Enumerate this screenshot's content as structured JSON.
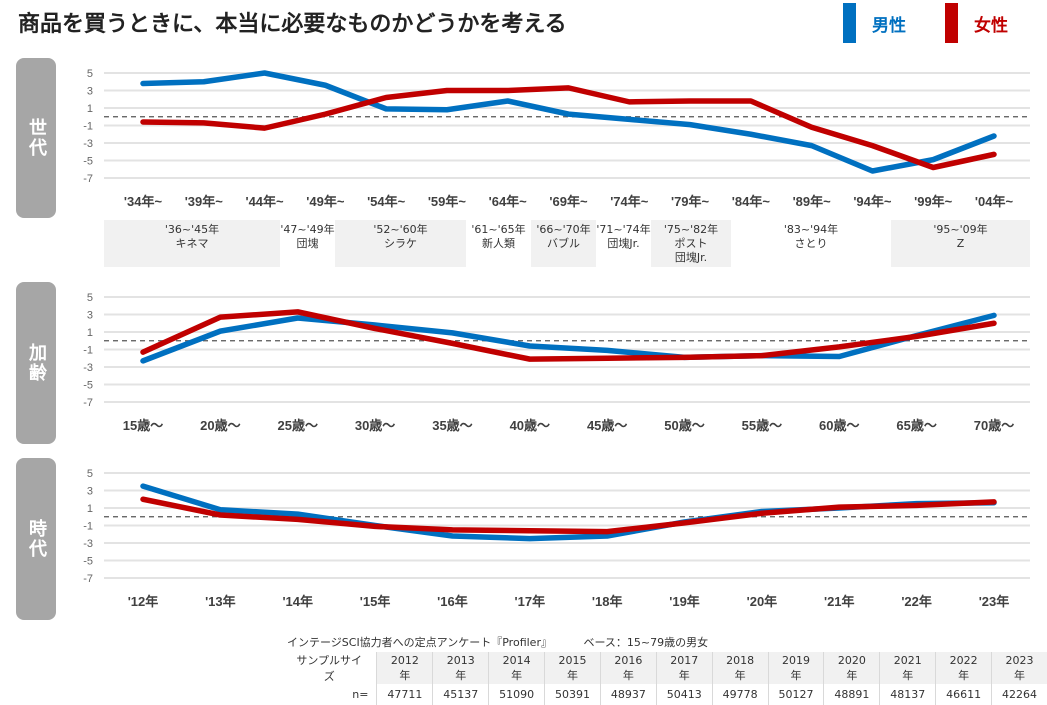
{
  "title": "商品を買うときに、本当に必要なものかどうかを考える",
  "legend": [
    {
      "label": "男性",
      "color": "#0070c0"
    },
    {
      "label": "女性",
      "color": "#c00000"
    }
  ],
  "chart_data": [
    {
      "type": "line",
      "panel_label": "世代",
      "xlabel": "",
      "ylabel": "",
      "yticks": [
        5,
        3,
        1,
        -1,
        -3,
        -5,
        -7
      ],
      "ylim": [
        -7,
        5
      ],
      "reference_line": 0,
      "grid": true,
      "categories": [
        "'34年~",
        "'39年~",
        "'44年~",
        "'49年~",
        "'54年~",
        "'59年~",
        "'64年~",
        "'69年~",
        "'74年~",
        "'79年~",
        "'84年~",
        "'89年~",
        "'94年~",
        "'99年~",
        "'04年~"
      ],
      "series": [
        {
          "name": "男性",
          "values": [
            3.8,
            4.0,
            5.0,
            3.6,
            0.9,
            0.8,
            1.8,
            0.3,
            -0.3,
            -0.9,
            -2.0,
            -3.3,
            -6.2,
            -4.9,
            -2.2
          ]
        },
        {
          "name": "女性",
          "values": [
            -0.6,
            -0.7,
            -1.3,
            0.3,
            2.2,
            3.0,
            3.0,
            3.3,
            1.7,
            1.8,
            1.8,
            -1.2,
            -3.3,
            -5.8,
            -4.3
          ]
        }
      ],
      "cohorts": [
        {
          "years": "'36~'45年",
          "name": "キネマ",
          "shaded": true
        },
        {
          "years": "'47~'49年",
          "name": "団塊",
          "shaded": false
        },
        {
          "years": "'52~'60年",
          "name": "シラケ",
          "shaded": true
        },
        {
          "years": "'61~'65年",
          "name": "新人類",
          "shaded": false
        },
        {
          "years": "'66~'70年",
          "name": "バブル",
          "shaded": true
        },
        {
          "years": "'71~'74年",
          "name": "団塊Jr.",
          "shaded": false
        },
        {
          "years": "'75~'82年",
          "name": "ポスト",
          "name2": "団塊Jr.",
          "shaded": true
        },
        {
          "years": "'83~'94年",
          "name": "さとり",
          "shaded": false
        },
        {
          "years": "'95~'09年",
          "name": "Z",
          "shaded": true
        }
      ]
    },
    {
      "type": "line",
      "panel_label": "加齢",
      "xlabel": "",
      "ylabel": "",
      "yticks": [
        5,
        3,
        1,
        -1,
        -3,
        -5,
        -7
      ],
      "ylim": [
        -7,
        5
      ],
      "reference_line": 0,
      "grid": true,
      "categories": [
        "15歳～",
        "20歳～",
        "25歳～",
        "30歳～",
        "35歳～",
        "40歳～",
        "45歳～",
        "50歳～",
        "55歳～",
        "60歳～",
        "65歳～",
        "70歳～"
      ],
      "series": [
        {
          "name": "男性",
          "values": [
            -2.3,
            1.1,
            2.6,
            1.8,
            0.9,
            -0.6,
            -1.1,
            -1.9,
            -1.7,
            -1.8,
            0.6,
            2.9
          ]
        },
        {
          "name": "女性",
          "values": [
            -1.3,
            2.7,
            3.3,
            1.4,
            -0.3,
            -2.1,
            -2.0,
            -1.9,
            -1.7,
            -0.7,
            0.5,
            2.0
          ]
        }
      ]
    },
    {
      "type": "line",
      "panel_label": "時代",
      "xlabel": "",
      "ylabel": "",
      "yticks": [
        5,
        3,
        1,
        -1,
        -3,
        -5,
        -7
      ],
      "ylim": [
        -7,
        5
      ],
      "reference_line": 0,
      "grid": true,
      "categories": [
        "'12年",
        "'13年",
        "'14年",
        "'15年",
        "'16年",
        "'17年",
        "'18年",
        "'19年",
        "'20年",
        "'21年",
        "'22年",
        "'23年"
      ],
      "series": [
        {
          "name": "男性",
          "values": [
            3.5,
            0.8,
            0.3,
            -1.0,
            -2.2,
            -2.5,
            -2.2,
            -0.6,
            0.6,
            1.0,
            1.5,
            1.6
          ]
        },
        {
          "name": "女性",
          "values": [
            2.0,
            0.2,
            -0.3,
            -1.1,
            -1.5,
            -1.6,
            -1.7,
            -0.7,
            0.4,
            1.1,
            1.3,
            1.7
          ]
        }
      ]
    }
  ],
  "source": {
    "survey": "インテージSCI協力者への定点アンケート『Profiler』",
    "base": "ベース：15~79歳の男女"
  },
  "sample_table": {
    "header_label": "サンプルサイズ",
    "n_label": "n=",
    "years": [
      "2012年",
      "2013年",
      "2014年",
      "2015年",
      "2016年",
      "2017年",
      "2018年",
      "2019年",
      "2020年",
      "2021年",
      "2022年",
      "2023年"
    ],
    "n": [
      "47711",
      "45137",
      "51090",
      "50391",
      "48937",
      "50413",
      "49778",
      "50127",
      "48891",
      "48137",
      "46611",
      "42264"
    ]
  }
}
